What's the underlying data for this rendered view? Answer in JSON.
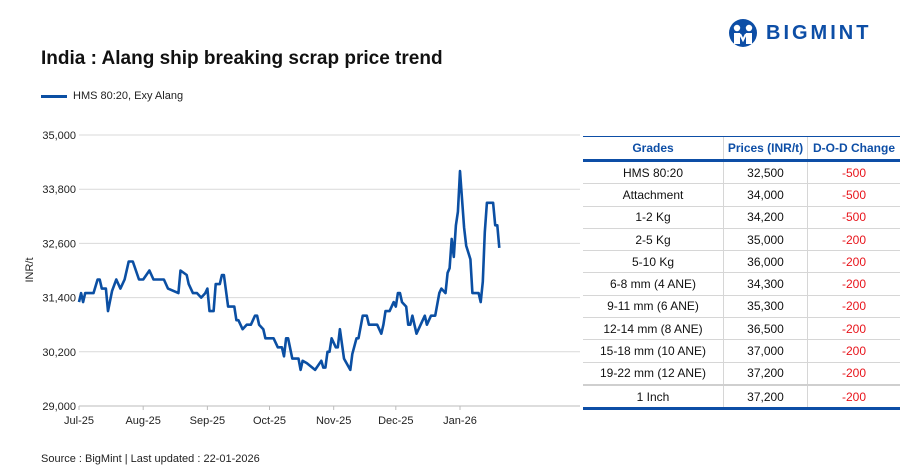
{
  "brand": {
    "name": "BIGMINT",
    "color": "#0d4ea6"
  },
  "title": "India : Alang ship breaking scrap price trend",
  "source": "Source : BigMint | Last updated : 22-01-2026",
  "chart_data": {
    "type": "line",
    "title": "India : Alang ship breaking scrap price trend",
    "ylabel": "INR/t",
    "xlabel": "",
    "ylim": [
      29000,
      35000
    ],
    "yticks": [
      "29,000",
      "30,200",
      "31,400",
      "32,600",
      "33,800",
      "35,000"
    ],
    "xticks": [
      "Jul-25",
      "Aug-25",
      "Sep-25",
      "Oct-25",
      "Nov-25",
      "Dec-25",
      "Jan-26"
    ],
    "grid": true,
    "legend": "top-left",
    "series": [
      {
        "name": "HMS 80:20, Exy Alang",
        "color": "#0b4fa3",
        "points": [
          [
            "2025-07-01",
            31300
          ],
          [
            "2025-07-02",
            31500
          ],
          [
            "2025-07-03",
            31300
          ],
          [
            "2025-07-04",
            31500
          ],
          [
            "2025-07-08",
            31500
          ],
          [
            "2025-07-10",
            31800
          ],
          [
            "2025-07-11",
            31800
          ],
          [
            "2025-07-12",
            31600
          ],
          [
            "2025-07-14",
            31600
          ],
          [
            "2025-07-15",
            31100
          ],
          [
            "2025-07-17",
            31550
          ],
          [
            "2025-07-19",
            31800
          ],
          [
            "2025-07-21",
            31600
          ],
          [
            "2025-07-23",
            31800
          ],
          [
            "2025-07-25",
            32200
          ],
          [
            "2025-07-27",
            32200
          ],
          [
            "2025-07-30",
            31800
          ],
          [
            "2025-08-01",
            31800
          ],
          [
            "2025-08-04",
            32000
          ],
          [
            "2025-08-06",
            31800
          ],
          [
            "2025-08-11",
            31800
          ],
          [
            "2025-08-13",
            31600
          ],
          [
            "2025-08-18",
            31500
          ],
          [
            "2025-08-19",
            32000
          ],
          [
            "2025-08-22",
            31900
          ],
          [
            "2025-08-23",
            31700
          ],
          [
            "2025-08-25",
            31500
          ],
          [
            "2025-08-27",
            31500
          ],
          [
            "2025-08-29",
            31400
          ],
          [
            "2025-08-31",
            31500
          ],
          [
            "2025-09-01",
            31600
          ],
          [
            "2025-09-02",
            31100
          ],
          [
            "2025-09-04",
            31100
          ],
          [
            "2025-09-05",
            31700
          ],
          [
            "2025-09-07",
            31700
          ],
          [
            "2025-09-08",
            31900
          ],
          [
            "2025-09-09",
            31900
          ],
          [
            "2025-09-11",
            31200
          ],
          [
            "2025-09-14",
            31200
          ],
          [
            "2025-09-15",
            30900
          ],
          [
            "2025-09-16",
            30900
          ],
          [
            "2025-09-18",
            30700
          ],
          [
            "2025-09-20",
            30800
          ],
          [
            "2025-09-22",
            30800
          ],
          [
            "2025-09-24",
            31000
          ],
          [
            "2025-09-25",
            31000
          ],
          [
            "2025-09-26",
            30800
          ],
          [
            "2025-09-28",
            30700
          ],
          [
            "2025-09-29",
            30500
          ],
          [
            "2025-10-03",
            30500
          ],
          [
            "2025-10-05",
            30300
          ],
          [
            "2025-10-07",
            30300
          ],
          [
            "2025-10-08",
            30100
          ],
          [
            "2025-10-09",
            30500
          ],
          [
            "2025-10-10",
            30500
          ],
          [
            "2025-10-12",
            30050
          ],
          [
            "2025-10-15",
            30050
          ],
          [
            "2025-10-16",
            29800
          ],
          [
            "2025-10-17",
            30000
          ],
          [
            "2025-10-19",
            29950
          ],
          [
            "2025-10-23",
            29800
          ],
          [
            "2025-10-26",
            30000
          ],
          [
            "2025-10-27",
            29850
          ],
          [
            "2025-10-28",
            29850
          ],
          [
            "2025-10-29",
            30200
          ],
          [
            "2025-10-30",
            30200
          ],
          [
            "2025-10-31",
            30500
          ],
          [
            "2025-11-02",
            30300
          ],
          [
            "2025-11-03",
            30300
          ],
          [
            "2025-11-04",
            30700
          ],
          [
            "2025-11-06",
            30050
          ],
          [
            "2025-11-09",
            29800
          ],
          [
            "2025-11-10",
            30150
          ],
          [
            "2025-11-12",
            30500
          ],
          [
            "2025-11-13",
            30500
          ],
          [
            "2025-11-15",
            31000
          ],
          [
            "2025-11-17",
            31000
          ],
          [
            "2025-11-18",
            30800
          ],
          [
            "2025-11-22",
            30800
          ],
          [
            "2025-11-24",
            30600
          ],
          [
            "2025-11-25",
            30800
          ],
          [
            "2025-11-26",
            31100
          ],
          [
            "2025-11-28",
            31100
          ],
          [
            "2025-11-30",
            31300
          ],
          [
            "2025-12-01",
            31200
          ],
          [
            "2025-12-02",
            31500
          ],
          [
            "2025-12-03",
            31500
          ],
          [
            "2025-12-04",
            31300
          ],
          [
            "2025-12-06",
            31200
          ],
          [
            "2025-12-07",
            30800
          ],
          [
            "2025-12-08",
            30800
          ],
          [
            "2025-12-09",
            31000
          ],
          [
            "2025-12-11",
            30600
          ],
          [
            "2025-12-15",
            31000
          ],
          [
            "2025-12-16",
            30800
          ],
          [
            "2025-12-18",
            31000
          ],
          [
            "2025-12-20",
            31000
          ],
          [
            "2025-12-22",
            31500
          ],
          [
            "2025-12-23",
            31600
          ],
          [
            "2025-12-25",
            31500
          ],
          [
            "2025-12-26",
            31950
          ],
          [
            "2025-12-27",
            32050
          ],
          [
            "2025-12-28",
            32700
          ],
          [
            "2025-12-29",
            32300
          ],
          [
            "2025-12-30",
            33000
          ],
          [
            "2025-12-31",
            33300
          ],
          [
            "2026-01-01",
            34200
          ],
          [
            "2026-01-03",
            32950
          ],
          [
            "2026-01-04",
            32550
          ],
          [
            "2026-01-06",
            32250
          ],
          [
            "2026-01-07",
            31500
          ],
          [
            "2026-01-10",
            31500
          ],
          [
            "2026-01-11",
            31300
          ],
          [
            "2026-01-12",
            31750
          ],
          [
            "2026-01-13",
            32850
          ],
          [
            "2026-01-14",
            33500
          ],
          [
            "2026-01-17",
            33500
          ],
          [
            "2026-01-18",
            33000
          ],
          [
            "2026-01-19",
            33000
          ],
          [
            "2026-01-20",
            32500
          ]
        ]
      }
    ]
  },
  "table": {
    "headers": [
      "Grades",
      "Prices (INR/t)",
      "D-O-D Change"
    ],
    "rows": [
      [
        "HMS 80:20",
        "32,500",
        "-500"
      ],
      [
        "Attachment",
        "34,000",
        "-500"
      ],
      [
        "1-2 Kg",
        "34,200",
        "-500"
      ],
      [
        "2-5 Kg",
        "35,000",
        "-200"
      ],
      [
        "5-10 Kg",
        "36,000",
        "-200"
      ],
      [
        "6-8 mm (4 ANE)",
        "34,300",
        "-200"
      ],
      [
        "9-11 mm (6 ANE)",
        "35,300",
        "-200"
      ],
      [
        "12-14 mm (8 ANE)",
        "36,500",
        "-200"
      ],
      [
        "15-18 mm (10 ANE)",
        "37,000",
        "-200"
      ],
      [
        "19-22 mm (12 ANE)",
        "37,200",
        "-200"
      ],
      [
        "1 Inch",
        "37,200",
        "-200"
      ]
    ],
    "negative_color": "#e8141b"
  }
}
